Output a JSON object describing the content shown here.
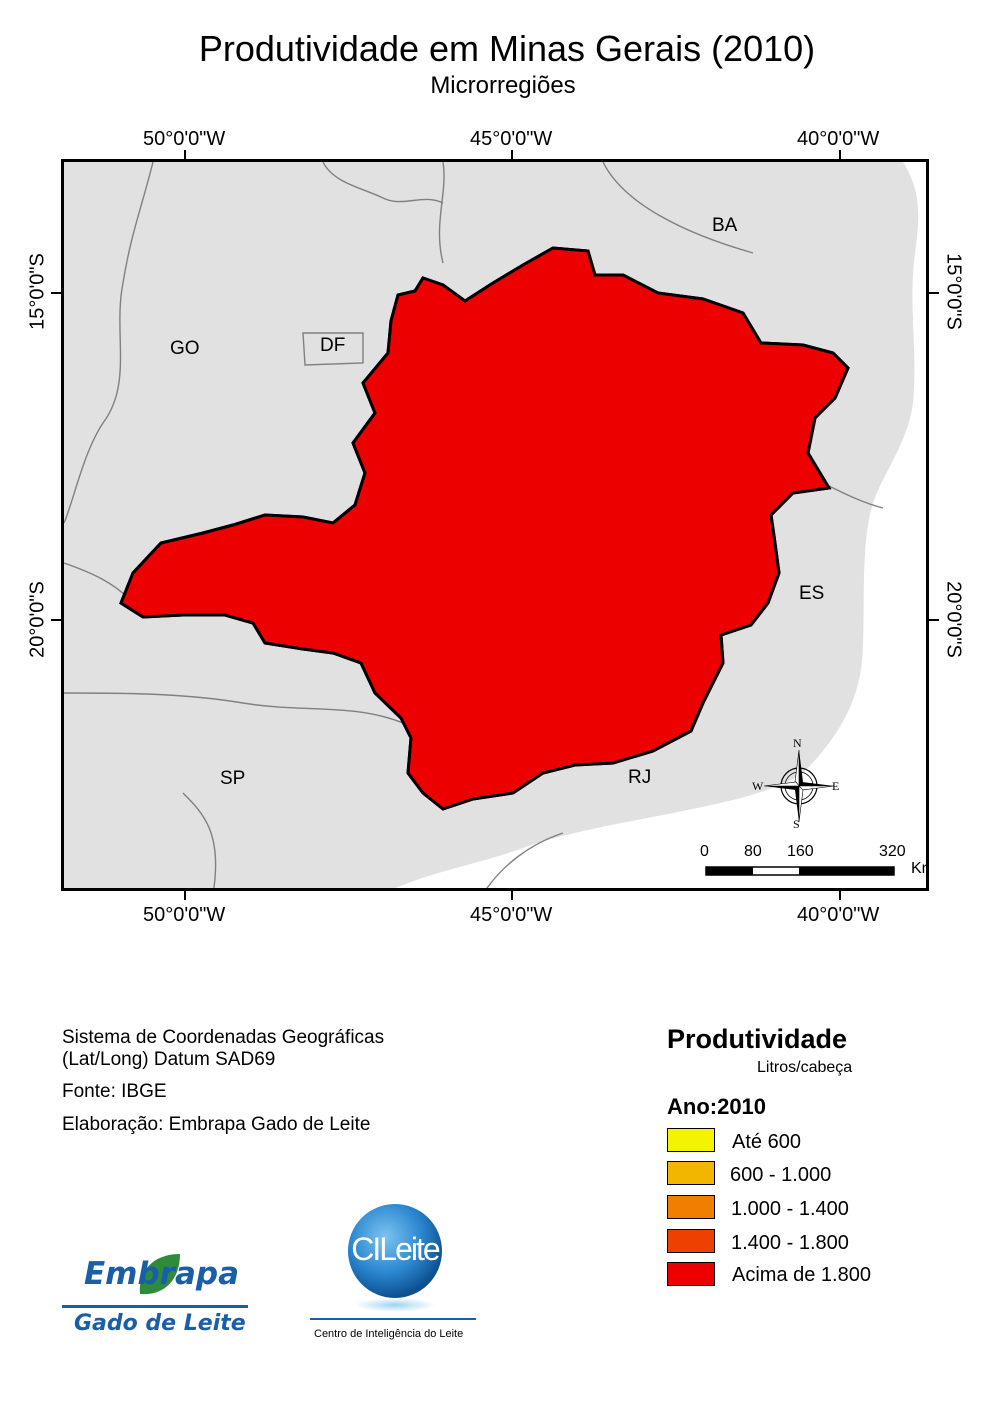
{
  "title": "Produtividade em Minas Gerais (2010)",
  "subtitle": "Microrregiões",
  "coordinates": {
    "top": [
      "50°0'0\"W",
      "45°0'0\"W",
      "40°0'0\"W"
    ],
    "bottom": [
      "50°0'0\"W",
      "45°0'0\"W",
      "40°0'0\"W"
    ],
    "left": [
      "15°0'0\"S",
      "20°0'0\"S"
    ],
    "right": [
      "15°0'0\"S",
      "20°0'0\"S"
    ]
  },
  "states": {
    "ba": "BA",
    "go": "GO",
    "df": "DF",
    "es": "ES",
    "sp": "SP",
    "rj": "RJ"
  },
  "compass": {
    "n": "N",
    "s": "S",
    "e": "E",
    "w": "W"
  },
  "scale_bar": {
    "labels": [
      "0",
      "80",
      "160",
      "320"
    ],
    "unit": "Km"
  },
  "info": {
    "line1": "Sistema de Coordenadas Geográficas",
    "line2": "(Lat/Long) Datum SAD69",
    "source": "Fonte: IBGE",
    "credit": "Elaboração: Embrapa Gado de Leite"
  },
  "legend": {
    "title": "Produtividade",
    "unit": "Litros/cabeça",
    "year_label": "Ano:2010",
    "classes": [
      {
        "label": "Até 600",
        "color": "#f4f400"
      },
      {
        "label": "600 - 1.000",
        "color": "#f2b500"
      },
      {
        "label": "1.000 - 1.400",
        "color": "#f07f00"
      },
      {
        "label": "1.400 - 1.800",
        "color": "#ee4000"
      },
      {
        "label": "Acima de 1.800",
        "color": "#ec0000"
      }
    ]
  },
  "logos": {
    "embrapa_name": "Embrapa",
    "embrapa_unit": "Gado de Leite",
    "cileite_name": "CILeite",
    "cileite_caption": "Centro de Inteligência do Leite"
  },
  "colors": {
    "background": "#e1e1e1",
    "border_lines": "#7f7f7f",
    "brand_blue": "#1a5ea8",
    "brand_green": "#2e8b3c"
  }
}
